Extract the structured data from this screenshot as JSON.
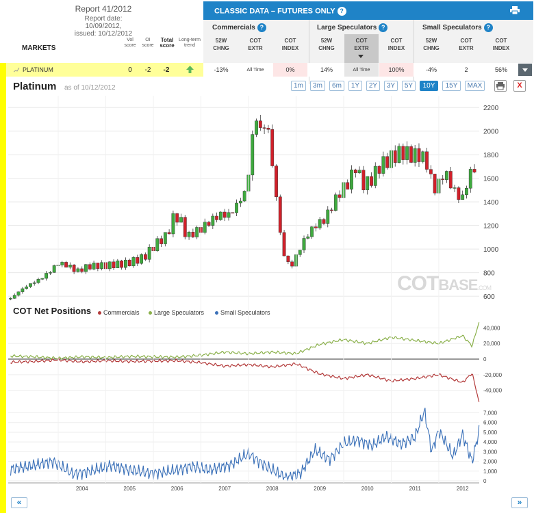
{
  "report": {
    "title": "Report 41/2012",
    "report_date": "Report date: 10/09/2012,",
    "issued": "issued: 10/12/2012"
  },
  "table": {
    "markets_label": "MARKETS",
    "vol_score_h": [
      "Vol",
      "score"
    ],
    "oi_score_h": [
      "OI",
      "score"
    ],
    "total_score_h": [
      "Total",
      "score"
    ],
    "trend_h": [
      "Long-term",
      "trend"
    ],
    "classic_title": "CLASSIC DATA – FUTURES ONLY",
    "groups": [
      "Commercials",
      "Large Speculators",
      "Small Speculators"
    ],
    "cols": [
      [
        "52W",
        "CHNG"
      ],
      [
        "COT",
        "EXTR"
      ],
      [
        "COT",
        "INDEX"
      ]
    ],
    "qmark": "?",
    "row": {
      "market": "PLATINUM",
      "vol": "0",
      "oi": "-2",
      "total": "-2",
      "values": [
        "-13%",
        "All Time",
        "0%",
        "14%",
        "All Time",
        "100%",
        "-4%",
        "2",
        "56%"
      ]
    }
  },
  "chart_header": {
    "title": "Platinum",
    "as_of": "as of 10/12/2012",
    "ranges": [
      "1m",
      "3m",
      "6m",
      "1Y",
      "2Y",
      "3Y",
      "5Y",
      "10Y",
      "15Y",
      "MAX"
    ],
    "active_range": "10Y",
    "close_label": "X"
  },
  "watermark": {
    "a": "COT",
    "b": "BASE",
    "c": ".COM"
  },
  "sub_chart": {
    "title": "COT Net Positions",
    "legend": [
      "Commercials",
      "Large Speculators",
      "Small Speculators"
    ]
  },
  "nav": {
    "prev": "«",
    "next": "»"
  },
  "colors": {
    "up": "#3faa3f",
    "down": "#d0202a",
    "commercials": "#b33a3a",
    "large": "#8ab04a",
    "small": "#3a70b8",
    "accent": "#1f83c7"
  },
  "chart_data": [
    {
      "type": "candlestick",
      "title": "Platinum",
      "y_ticks": [
        600,
        800,
        1000,
        1200,
        1400,
        1600,
        1800,
        2000,
        2200
      ],
      "ylim": [
        560,
        2300
      ],
      "x_ticks": [
        "2004",
        "2005",
        "2006",
        "2007",
        "2008",
        "2009",
        "2010",
        "2011",
        "2012"
      ],
      "xlim": [
        2002.95,
        2012.85
      ],
      "series_close": [
        [
          2003.0,
          580
        ],
        [
          2003.2,
          650
        ],
        [
          2003.4,
          700
        ],
        [
          2003.6,
          740
        ],
        [
          2003.8,
          800
        ],
        [
          2004.0,
          880
        ],
        [
          2004.2,
          860
        ],
        [
          2004.4,
          810
        ],
        [
          2004.6,
          850
        ],
        [
          2004.8,
          860
        ],
        [
          2005.0,
          860
        ],
        [
          2005.2,
          870
        ],
        [
          2005.4,
          875
        ],
        [
          2005.6,
          900
        ],
        [
          2005.8,
          930
        ],
        [
          2006.0,
          1020
        ],
        [
          2006.1,
          1060
        ],
        [
          2006.3,
          1120
        ],
        [
          2006.4,
          1260
        ],
        [
          2006.55,
          1270
        ],
        [
          2006.7,
          1100
        ],
        [
          2006.9,
          1150
        ],
        [
          2007.0,
          1170
        ],
        [
          2007.2,
          1240
        ],
        [
          2007.4,
          1290
        ],
        [
          2007.6,
          1290
        ],
        [
          2007.8,
          1400
        ],
        [
          2007.95,
          1500
        ],
        [
          2008.05,
          1780
        ],
        [
          2008.12,
          2160
        ],
        [
          2008.2,
          2050
        ],
        [
          2008.3,
          2000
        ],
        [
          2008.4,
          2080
        ],
        [
          2008.5,
          1700
        ],
        [
          2008.6,
          1400
        ],
        [
          2008.7,
          1000
        ],
        [
          2008.8,
          900
        ],
        [
          2008.9,
          850
        ],
        [
          2009.0,
          940
        ],
        [
          2009.2,
          1100
        ],
        [
          2009.4,
          1200
        ],
        [
          2009.6,
          1250
        ],
        [
          2009.8,
          1400
        ],
        [
          2009.95,
          1500
        ],
        [
          2010.1,
          1560
        ],
        [
          2010.25,
          1700
        ],
        [
          2010.4,
          1550
        ],
        [
          2010.55,
          1570
        ],
        [
          2010.75,
          1700
        ],
        [
          2010.95,
          1760
        ],
        [
          2011.1,
          1800
        ],
        [
          2011.25,
          1820
        ],
        [
          2011.45,
          1790
        ],
        [
          2011.6,
          1800
        ],
        [
          2011.75,
          1730
        ],
        [
          2011.85,
          1560
        ],
        [
          2011.95,
          1500
        ],
        [
          2012.1,
          1650
        ],
        [
          2012.2,
          1600
        ],
        [
          2012.35,
          1470
        ],
        [
          2012.5,
          1430
        ],
        [
          2012.65,
          1640
        ],
        [
          2012.75,
          1680
        ]
      ]
    },
    {
      "type": "line",
      "title": "COT Net Positions",
      "y_ticks": [
        -40000,
        -20000,
        0,
        20000,
        40000
      ],
      "y_tick_labels": [
        "-40,000",
        "-20,000",
        "0",
        "20,000",
        "40,000"
      ],
      "ylim": [
        -57000,
        50000
      ],
      "series": [
        {
          "name": "Commercials",
          "x": [
            2003.0,
            2003.5,
            2004.0,
            2004.5,
            2005.0,
            2005.5,
            2006.0,
            2006.5,
            2007.0,
            2007.5,
            2008.0,
            2008.5,
            2009.0,
            2009.5,
            2010.0,
            2010.5,
            2011.0,
            2011.5,
            2012.0,
            2012.5,
            2012.7,
            2012.85
          ],
          "values": [
            -4000,
            -3000,
            -1000,
            -3500,
            -2000,
            -3000,
            -2500,
            -2000,
            -4500,
            -9000,
            -7000,
            -10000,
            -6000,
            -19000,
            -25000,
            -20000,
            -28000,
            -25000,
            -20000,
            -30000,
            -18000,
            -56000
          ]
        },
        {
          "name": "Large Speculators",
          "x": [
            2003.0,
            2003.5,
            2004.0,
            2004.5,
            2005.0,
            2005.5,
            2006.0,
            2006.5,
            2007.0,
            2007.5,
            2008.0,
            2008.5,
            2009.0,
            2009.5,
            2010.0,
            2010.5,
            2011.0,
            2011.5,
            2012.0,
            2012.5,
            2012.7,
            2012.85
          ],
          "values": [
            4000,
            3000,
            1000,
            3000,
            2000,
            3500,
            3000,
            2500,
            5000,
            9000,
            7000,
            9000,
            7000,
            19000,
            25000,
            20000,
            28000,
            24000,
            20000,
            30000,
            17000,
            48000
          ]
        },
        {
          "name": "Small Speculators",
          "x": [
            2003.0,
            2003.5,
            2003.9,
            2004.3,
            2004.7,
            2005.1,
            2005.5,
            2005.9,
            2006.3,
            2006.8,
            2007.2,
            2007.6,
            2008.0,
            2008.4,
            2008.8,
            2009.1,
            2009.4,
            2009.7,
            2010.0,
            2010.3,
            2010.6,
            2010.9,
            2011.2,
            2011.5,
            2011.7,
            2011.85,
            2012.0,
            2012.3,
            2012.5,
            2012.7,
            2012.85
          ],
          "values": [
            1200,
            1600,
            2000,
            700,
            1000,
            1600,
            1100,
            800,
            900,
            1500,
            1100,
            1600,
            2800,
            1400,
            300,
            800,
            3200,
            2200,
            3800,
            4200,
            3600,
            4600,
            3800,
            4500,
            7200,
            3000,
            5200,
            2500,
            4800,
            2000,
            5200
          ]
        }
      ],
      "sub_axis": {
        "y_ticks": [
          0,
          1000,
          2000,
          3000,
          4000,
          5000,
          6000,
          7000
        ],
        "y_tick_labels": [
          "0",
          "1,000",
          "2,000",
          "3,000",
          "4,000",
          "5,000",
          "6,000",
          "7,000"
        ],
        "ylim": [
          0,
          7600
        ]
      }
    }
  ]
}
